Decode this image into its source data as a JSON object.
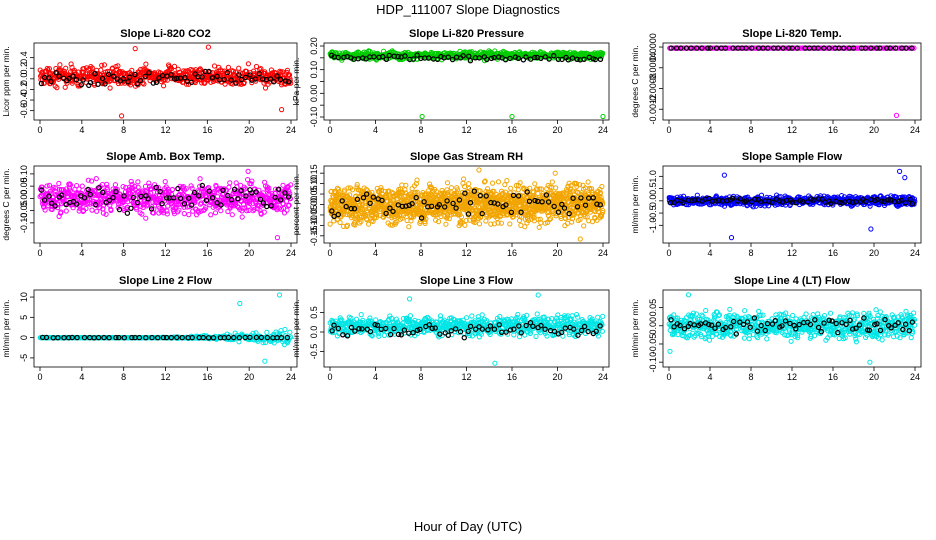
{
  "page": {
    "title": "HDP_111007  Slope Diagnostics",
    "xlabel": "Hour of Day (UTC)"
  },
  "chart_data": [
    {
      "type": "scatter",
      "title": "Slope Li-820 CO2",
      "ylabel": "Licor ppm per min.",
      "xlim": [
        0,
        24
      ],
      "ylim": [
        -0.72,
        0.62
      ],
      "xticks": [
        0,
        4,
        8,
        12,
        16,
        20,
        24
      ],
      "xtick_labels": [
        "0",
        "4",
        "8",
        "12",
        "16",
        "20",
        "24"
      ],
      "yticks": [
        -0.6,
        -0.4,
        -0.2,
        0.0,
        0.2,
        0.4
      ],
      "ytick_labels": [
        "-0.6",
        "-0.4",
        "-0.2",
        "0.0",
        "0.2",
        "0.4"
      ],
      "series": [
        {
          "name": "all",
          "color": "#ff0000",
          "n": 600,
          "center": 0.05,
          "spread": 0.5,
          "env": 0,
          "outliers": [
            [
              7.8,
              -0.7
            ],
            [
              16.1,
              0.6
            ],
            [
              9.1,
              0.57
            ],
            [
              23.1,
              -0.58
            ]
          ]
        },
        {
          "name": "hourly",
          "color": "#000000",
          "n": 70,
          "center": 0.0,
          "spread": 0.35,
          "env": 0,
          "outliers": []
        }
      ]
    },
    {
      "type": "scatter",
      "title": "Slope Li-820 Pressure",
      "ylabel": "kPa per min.",
      "xlim": [
        0,
        24
      ],
      "ylim": [
        -0.1,
        0.2
      ],
      "xticks": [
        0,
        4,
        8,
        12,
        16,
        20,
        24
      ],
      "xtick_labels": [
        "0",
        "4",
        "8",
        "12",
        "16",
        "20",
        "24"
      ],
      "yticks": [
        -0.1,
        -0.05,
        0.0,
        0.05,
        0.1,
        0.15,
        0.2
      ],
      "ytick_labels": [
        "-0.10",
        "",
        "0.00",
        "",
        "0.10",
        "",
        "0.20"
      ],
      "series": [
        {
          "name": "all",
          "color": "#00cc00",
          "n": 700,
          "center": 0.16,
          "spread": 0.045,
          "env": 0,
          "outliers": [
            [
              8.1,
              -0.098
            ],
            [
              16.0,
              -0.098
            ],
            [
              24.0,
              -0.098
            ]
          ]
        },
        {
          "name": "hourly",
          "color": "#000000",
          "n": 70,
          "center": 0.15,
          "spread": 0.03,
          "env": 0,
          "outliers": []
        }
      ]
    },
    {
      "type": "scatter",
      "title": "Slope Li-820 Temp.",
      "ylabel": "degrees C per min.",
      "xlim": [
        0,
        24
      ],
      "ylim": [
        -0.00135,
        2e-05
      ],
      "xticks": [
        0,
        4,
        8,
        12,
        16,
        20,
        24
      ],
      "xtick_labels": [
        "0",
        "4",
        "8",
        "12",
        "16",
        "20",
        "24"
      ],
      "yticks": [
        -0.0012,
        -0.0008,
        -0.0004,
        0.0
      ],
      "ytick_labels": [
        "-0.0012",
        "-0.0008",
        "-0.0004",
        "0.0000"
      ],
      "series": [
        {
          "name": "all",
          "color": "#ff00ff",
          "n": 150,
          "center": 0.0,
          "spread": 0.0,
          "env": 0,
          "outliers": [
            [
              22.2,
              -0.00132
            ]
          ]
        },
        {
          "name": "hourly",
          "color": "#000000",
          "n": 48,
          "center": 0.0,
          "spread": 0.0,
          "env": 0,
          "outliers": []
        }
      ]
    },
    {
      "type": "scatter",
      "title": "Slope Amb. Box Temp.",
      "ylabel": "degrees C per min.",
      "xlim": [
        0,
        24
      ],
      "ylim": [
        -0.17,
        0.12
      ],
      "xticks": [
        0,
        4,
        8,
        12,
        16,
        20,
        24
      ],
      "xtick_labels": [
        "0",
        "4",
        "8",
        "12",
        "16",
        "20",
        "24"
      ],
      "yticks": [
        -0.1,
        -0.05,
        0.0,
        0.05,
        0.1
      ],
      "ytick_labels": [
        "-0.10",
        "-0.05",
        "0.00",
        "0.05",
        "0.10"
      ],
      "series": [
        {
          "name": "all",
          "color": "#ff00ff",
          "n": 750,
          "center": 0.0,
          "spread": 0.18,
          "env": 0,
          "outliers": [
            [
              22.7,
              -0.16
            ],
            [
              19.9,
              0.11
            ]
          ]
        },
        {
          "name": "hourly",
          "color": "#000000",
          "n": 70,
          "center": 0.0,
          "spread": 0.15,
          "env": 0,
          "outliers": []
        }
      ]
    },
    {
      "type": "scatter",
      "title": "Slope Gas Stream RH",
      "ylabel": "percent per min.",
      "xlim": [
        0,
        24
      ],
      "ylim": [
        -0.17,
        0.17
      ],
      "xticks": [
        0,
        4,
        8,
        12,
        16,
        20,
        24
      ],
      "xtick_labels": [
        "0",
        "4",
        "8",
        "12",
        "16",
        "20",
        "24"
      ],
      "yticks": [
        -0.15,
        -0.1,
        -0.05,
        0.0,
        0.05,
        0.1,
        0.15
      ],
      "ytick_labels": [
        "-0.15",
        "-0.10",
        "-0.05",
        "0.00",
        "0.05",
        "0.10",
        "0.15"
      ],
      "series": [
        {
          "name": "all",
          "color": "#f2a500",
          "n": 1500,
          "center": 0.0,
          "spread": 0.26,
          "env": 0,
          "outliers": [
            [
              13.1,
              0.165
            ],
            [
              22.0,
              -0.165
            ],
            [
              19.8,
              0.15
            ]
          ]
        },
        {
          "name": "hourly",
          "color": "#000000",
          "n": 70,
          "center": 0.0,
          "spread": 0.18,
          "env": 0,
          "outliers": []
        }
      ]
    },
    {
      "type": "scatter",
      "title": "Slope Sample Flow",
      "ylabel": "ml/min per min.",
      "xlim": [
        0,
        24
      ],
      "ylim": [
        -1.6,
        1.3
      ],
      "xticks": [
        0,
        4,
        8,
        12,
        16,
        20,
        24
      ],
      "xtick_labels": [
        "0",
        "4",
        "8",
        "12",
        "16",
        "20",
        "24"
      ],
      "yticks": [
        -1.0,
        -0.5,
        0.0,
        0.5,
        1.0
      ],
      "ytick_labels": [
        "-1.0",
        "-0.5",
        "0.0",
        "0.5",
        "1.0"
      ],
      "series": [
        {
          "name": "all",
          "color": "#0000ff",
          "n": 700,
          "center": 0.0,
          "spread": 0.55,
          "env": 0,
          "outliers": [
            [
              6.1,
              -1.5
            ],
            [
              22.5,
              1.2
            ],
            [
              5.4,
              1.05
            ],
            [
              19.7,
              -1.15
            ],
            [
              23.0,
              0.95
            ]
          ]
        },
        {
          "name": "hourly",
          "color": "#000000",
          "n": 70,
          "center": 0.0,
          "spread": 0.3,
          "env": 0,
          "outliers": []
        }
      ]
    },
    {
      "type": "scatter",
      "title": "Slope Line 2 Flow",
      "ylabel": "ml/min per min.",
      "xlim": [
        0,
        24
      ],
      "ylim": [
        -6.5,
        11.0
      ],
      "xticks": [
        0,
        4,
        8,
        12,
        16,
        20,
        24
      ],
      "xtick_labels": [
        "0",
        "4",
        "8",
        "12",
        "16",
        "20",
        "24"
      ],
      "yticks": [
        -5,
        0,
        5,
        10
      ],
      "ytick_labels": [
        "-5",
        "0",
        "5",
        "10"
      ],
      "series": [
        {
          "name": "all",
          "color": "#00e5e5",
          "n": 400,
          "center": 0.0,
          "spread": 0.8,
          "env": 1,
          "outliers": [
            [
              22.9,
              10.5
            ],
            [
              21.5,
              -5.8
            ],
            [
              19.1,
              8.4
            ]
          ]
        },
        {
          "name": "hourly",
          "color": "#000000",
          "n": 48,
          "center": 0.0,
          "spread": 0.15,
          "env": 0,
          "outliers": []
        }
      ]
    },
    {
      "type": "scatter",
      "title": "Slope Line 3 Flow",
      "ylabel": "ml/min per min.",
      "xlim": [
        0,
        24
      ],
      "ylim": [
        -0.82,
        1.0
      ],
      "xticks": [
        0,
        4,
        8,
        12,
        16,
        20,
        24
      ],
      "xtick_labels": [
        "0",
        "4",
        "8",
        "12",
        "16",
        "20",
        "24"
      ],
      "yticks": [
        -0.5,
        0.0,
        0.5
      ],
      "ytick_labels": [
        "-0.5",
        "0.0",
        "0.5"
      ],
      "series": [
        {
          "name": "all",
          "color": "#00e5e5",
          "n": 700,
          "center": 0.15,
          "spread": 0.75,
          "env": 0,
          "outliers": [
            [
              14.5,
              -0.8
            ],
            [
              18.3,
              0.95
            ],
            [
              7.0,
              0.85
            ]
          ]
        },
        {
          "name": "hourly",
          "color": "#000000",
          "n": 70,
          "center": 0.05,
          "spread": 0.55,
          "env": 0,
          "outliers": []
        }
      ]
    },
    {
      "type": "scatter",
      "title": "Slope Line 4 (LT) Flow",
      "ylabel": "ml/min per min.",
      "xlim": [
        0,
        24
      ],
      "ylim": [
        -0.105,
        0.09
      ],
      "xticks": [
        0,
        4,
        8,
        12,
        16,
        20,
        24
      ],
      "xtick_labels": [
        "0",
        "4",
        "8",
        "12",
        "16",
        "20",
        "24"
      ],
      "yticks": [
        -0.1,
        -0.05,
        0.0,
        0.05
      ],
      "ytick_labels": [
        "-0.10",
        "-0.05",
        "0.00",
        "0.05"
      ],
      "series": [
        {
          "name": "all",
          "color": "#00e5e5",
          "n": 700,
          "center": 0.0,
          "spread": 0.1,
          "env": 0,
          "outliers": [
            [
              1.9,
              0.085
            ],
            [
              19.6,
              -0.1
            ],
            [
              0.1,
              -0.07
            ]
          ]
        },
        {
          "name": "hourly",
          "color": "#000000",
          "n": 70,
          "center": 0.0,
          "spread": 0.07,
          "env": 0,
          "outliers": []
        }
      ]
    }
  ]
}
